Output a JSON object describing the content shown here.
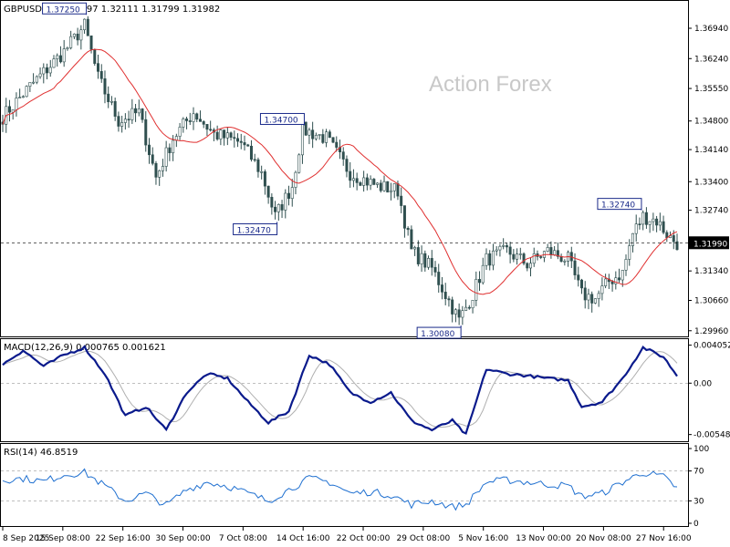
{
  "chart_data": [
    {
      "type": "candlestick",
      "title": "GBPUSD,H4  1.32097 1.32111 1.31799 1.31982",
      "watermark": "Action Forex",
      "ylim": [
        1.2985,
        1.3755
      ],
      "y_ticks": [
        "1.36940",
        "1.36240",
        "1.35550",
        "1.34800",
        "1.34140",
        "1.33400",
        "1.32740",
        "1.31340",
        "1.30660",
        "1.29960"
      ],
      "x_ticks": [
        "8 Sep 2025",
        "15 Sep 08:00",
        "22 Sep 16:00",
        "30 Sep 00:00",
        "7 Oct 08:00",
        "14 Oct 16:00",
        "22 Oct 00:00",
        "29 Oct 08:00",
        "5 Nov 16:00",
        "13 Nov 00:00",
        "20 Nov 08:00",
        "27 Nov 16:00"
      ],
      "current_price": "1.31990",
      "annotations": [
        {
          "text": "1.37250",
          "index": 24,
          "value": 1.3725
        },
        {
          "text": "1.34700",
          "index": 88,
          "value": 1.347
        },
        {
          "text": "1.32470",
          "index": 80,
          "value": 1.3247
        },
        {
          "text": "1.30080",
          "index": 134,
          "value": 1.3008
        },
        {
          "text": "1.32740",
          "index": 187,
          "value": 1.3274
        }
      ],
      "price_path": [
        [
          0,
          1.349
        ],
        [
          8,
          1.356
        ],
        [
          18,
          1.364
        ],
        [
          24,
          1.37
        ],
        [
          28,
          1.358
        ],
        [
          34,
          1.348
        ],
        [
          40,
          1.35
        ],
        [
          45,
          1.335
        ],
        [
          50,
          1.344
        ],
        [
          56,
          1.35
        ],
        [
          62,
          1.345
        ],
        [
          70,
          1.343
        ],
        [
          76,
          1.336
        ],
        [
          80,
          1.326
        ],
        [
          85,
          1.333
        ],
        [
          88,
          1.346
        ],
        [
          95,
          1.344
        ],
        [
          102,
          1.336
        ],
        [
          110,
          1.333
        ],
        [
          116,
          1.332
        ],
        [
          120,
          1.318
        ],
        [
          126,
          1.314
        ],
        [
          130,
          1.308
        ],
        [
          134,
          1.302
        ],
        [
          138,
          1.308
        ],
        [
          142,
          1.316
        ],
        [
          148,
          1.318
        ],
        [
          154,
          1.315
        ],
        [
          160,
          1.318
        ],
        [
          166,
          1.316
        ],
        [
          170,
          1.308
        ],
        [
          174,
          1.307
        ],
        [
          178,
          1.311
        ],
        [
          182,
          1.313
        ],
        [
          185,
          1.322
        ],
        [
          188,
          1.326
        ],
        [
          192,
          1.325
        ],
        [
          196,
          1.321
        ],
        [
          198,
          1.3198
        ]
      ],
      "series": [
        {
          "name": "",
          "color": "#2f4f4f"
        },
        {
          "name": "",
          "color": "#e03030"
        }
      ]
    },
    {
      "type": "line",
      "title": "MACD(12,26,9) 0.000765 0.001621",
      "ylim": [
        -0.006,
        0.0045
      ],
      "y_ticks": [
        "0.004052",
        "0.00",
        "-0.00548"
      ],
      "macd_path": [
        [
          0,
          0.002
        ],
        [
          6,
          0.0035
        ],
        [
          12,
          0.0018
        ],
        [
          18,
          0.003
        ],
        [
          24,
          0.0038
        ],
        [
          30,
          0.001
        ],
        [
          36,
          -0.0035
        ],
        [
          42,
          -0.0025
        ],
        [
          48,
          -0.005
        ],
        [
          54,
          -0.001
        ],
        [
          60,
          0.001
        ],
        [
          66,
          0.0005
        ],
        [
          72,
          -0.002
        ],
        [
          78,
          -0.0042
        ],
        [
          84,
          -0.003
        ],
        [
          90,
          0.003
        ],
        [
          96,
          0.002
        ],
        [
          102,
          -0.001
        ],
        [
          108,
          -0.002
        ],
        [
          114,
          -0.001
        ],
        [
          120,
          -0.004
        ],
        [
          126,
          -0.005
        ],
        [
          132,
          -0.004
        ],
        [
          136,
          -0.0055
        ],
        [
          142,
          0.0015
        ],
        [
          148,
          0.001
        ],
        [
          154,
          0.0008
        ],
        [
          160,
          0.0005
        ],
        [
          166,
          0.0003
        ],
        [
          170,
          -0.0025
        ],
        [
          176,
          -0.002
        ],
        [
          182,
          0.0005
        ],
        [
          188,
          0.0038
        ],
        [
          194,
          0.0028
        ],
        [
          198,
          0.0008
        ]
      ],
      "series": [
        {
          "name": "",
          "color": "#0a1a8c"
        },
        {
          "name": "",
          "color": "#b0b0b0"
        }
      ]
    },
    {
      "type": "line",
      "title": "RSI(14) 46.8519",
      "ylim": [
        0,
        100
      ],
      "y_ticks": [
        "100",
        "70",
        "30",
        "0"
      ],
      "levels": [
        70,
        30
      ],
      "rsi_path": [
        [
          0,
          58
        ],
        [
          6,
          60
        ],
        [
          12,
          56
        ],
        [
          18,
          65
        ],
        [
          24,
          68
        ],
        [
          30,
          50
        ],
        [
          36,
          30
        ],
        [
          42,
          40
        ],
        [
          48,
          24
        ],
        [
          54,
          45
        ],
        [
          60,
          55
        ],
        [
          66,
          50
        ],
        [
          72,
          40
        ],
        [
          78,
          30
        ],
        [
          84,
          45
        ],
        [
          90,
          60
        ],
        [
          96,
          55
        ],
        [
          102,
          40
        ],
        [
          108,
          42
        ],
        [
          114,
          38
        ],
        [
          120,
          25
        ],
        [
          126,
          30
        ],
        [
          132,
          22
        ],
        [
          136,
          25
        ],
        [
          142,
          55
        ],
        [
          148,
          58
        ],
        [
          154,
          55
        ],
        [
          160,
          52
        ],
        [
          166,
          50
        ],
        [
          170,
          36
        ],
        [
          176,
          40
        ],
        [
          182,
          55
        ],
        [
          188,
          68
        ],
        [
          194,
          62
        ],
        [
          198,
          47
        ]
      ],
      "series": [
        {
          "name": "",
          "color": "#1e6fd0"
        }
      ]
    }
  ]
}
